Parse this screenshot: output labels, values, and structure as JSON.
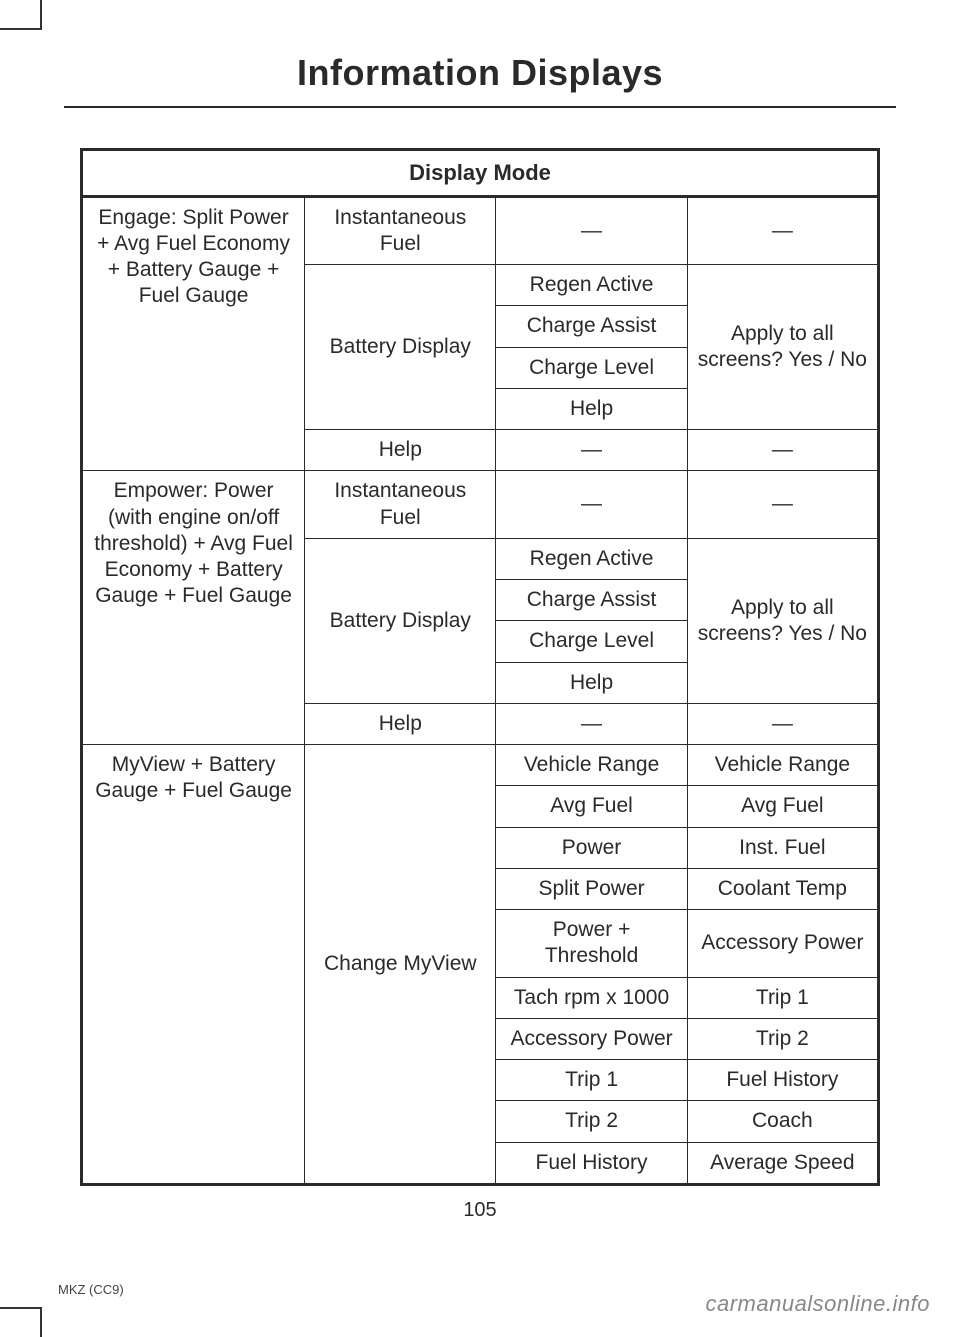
{
  "page": {
    "title": "Information Displays",
    "number": "105",
    "footer_code": "MKZ (CC9)",
    "watermark": "carmanualsonline.info"
  },
  "table": {
    "header": "Display Mode",
    "sections": [
      {
        "label": "Engage: Split Power + Avg Fuel Economy + Battery Gauge + Fuel Gauge",
        "rows": [
          {
            "c2": "Instantaneous Fuel",
            "c3": "—",
            "c4": "—"
          },
          {
            "c2": "Battery Display",
            "c3": "Regen Active",
            "c4": "Apply to all screens? Yes / No"
          },
          {
            "c3": "Charge Assist"
          },
          {
            "c3": "Charge Level"
          },
          {
            "c3": "Help"
          },
          {
            "c2": "Help",
            "c3": "—",
            "c4": "—"
          }
        ]
      },
      {
        "label": "Empower: Power (with engine on/off threshold) + Avg Fuel Economy + Battery Gauge + Fuel Gauge",
        "rows": [
          {
            "c2": "Instantaneous Fuel",
            "c3": "—",
            "c4": "—"
          },
          {
            "c2": "Battery Display",
            "c3": "Regen Active",
            "c4": "Apply to all screens? Yes / No"
          },
          {
            "c3": "Charge Assist"
          },
          {
            "c3": "Charge Level"
          },
          {
            "c3": "Help"
          },
          {
            "c2": "Help",
            "c3": "—",
            "c4": "—"
          }
        ]
      },
      {
        "label": "MyView + Battery Gauge + Fuel Gauge",
        "rows": [
          {
            "c2": "Change MyView",
            "c3": "Vehicle Range",
            "c4": "Vehicle Range"
          },
          {
            "c3": "Avg Fuel",
            "c4": "Avg Fuel"
          },
          {
            "c3": "Power",
            "c4": "Inst. Fuel"
          },
          {
            "c3": "Split Power",
            "c4": "Coolant Temp"
          },
          {
            "c3": "Power + Threshold",
            "c4": "Accessory Power"
          },
          {
            "c3": "Tach rpm x 1000",
            "c4": "Trip 1"
          },
          {
            "c3": "Accessory Power",
            "c4": "Trip 2"
          },
          {
            "c3": "Trip 1",
            "c4": "Fuel History"
          },
          {
            "c3": "Trip 2",
            "c4": "Coach"
          },
          {
            "c3": "Fuel History",
            "c4": "Average Speed"
          }
        ]
      }
    ]
  }
}
